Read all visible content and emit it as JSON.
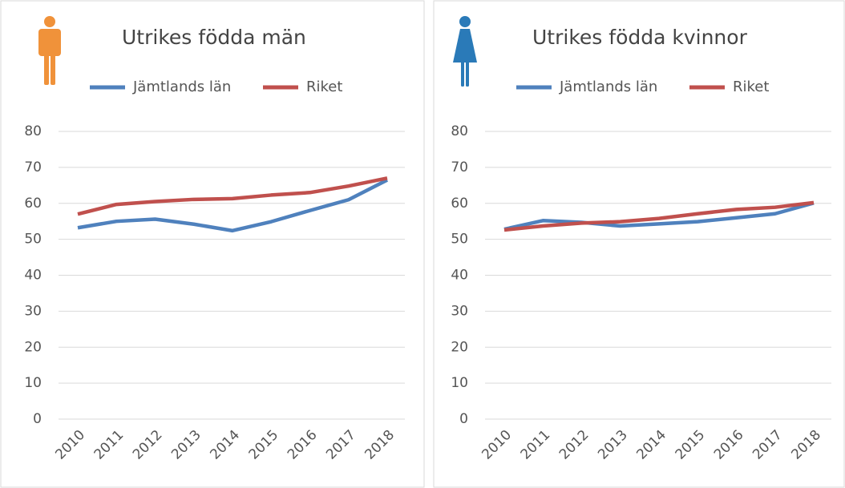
{
  "chart_data": [
    {
      "type": "line",
      "title": "Utrikes födda män",
      "categories": [
        "2010",
        "2011",
        "2012",
        "2013",
        "2014",
        "2015",
        "2016",
        "2017",
        "2018"
      ],
      "series": [
        {
          "name": "Jämtlands län",
          "color": "#4f81bd",
          "values": [
            53.2,
            55.0,
            55.6,
            54.2,
            52.4,
            54.9,
            58.0,
            61.0,
            66.5
          ]
        },
        {
          "name": "Riket",
          "color": "#c0504d",
          "values": [
            57.0,
            59.7,
            60.5,
            61.1,
            61.3,
            62.3,
            63.0,
            64.8,
            67.0
          ]
        }
      ],
      "ylim": [
        0,
        80
      ],
      "yticks": [
        0,
        10,
        20,
        30,
        40,
        50,
        60,
        70,
        80
      ],
      "grid": true,
      "legend": "top"
    },
    {
      "type": "line",
      "title": "Utrikes födda kvinnor",
      "categories": [
        "2010",
        "2011",
        "2012",
        "2013",
        "2014",
        "2015",
        "2016",
        "2017",
        "2018"
      ],
      "series": [
        {
          "name": "Jämtlands län",
          "color": "#4f81bd",
          "values": [
            52.8,
            55.2,
            54.7,
            53.7,
            54.3,
            54.9,
            56.0,
            57.1,
            60.1
          ]
        },
        {
          "name": "Riket",
          "color": "#c0504d",
          "values": [
            52.6,
            53.7,
            54.5,
            54.9,
            55.8,
            57.1,
            58.3,
            58.9,
            60.2
          ]
        }
      ],
      "ylim": [
        0,
        80
      ],
      "yticks": [
        0,
        10,
        20,
        30,
        40,
        50,
        60,
        70,
        80
      ],
      "grid": true,
      "legend": "top"
    }
  ]
}
